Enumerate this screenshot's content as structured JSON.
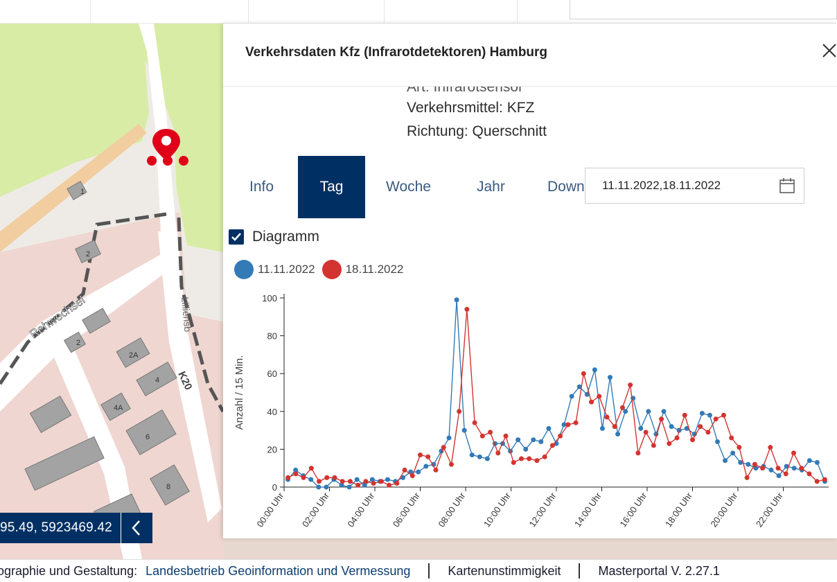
{
  "panel": {
    "title": "Verkehrsdaten Kfz (Infrarotdetektoren) Hamburg",
    "meta": {
      "art_cut": "Art: Infrarotsensor",
      "verkehrsmittel": "Verkehrsmittel: KFZ",
      "richtung": "Richtung: Querschnitt"
    },
    "tabs": [
      {
        "label": "Info",
        "active": false
      },
      {
        "label": "Tag",
        "active": true
      },
      {
        "label": "Woche",
        "active": false
      },
      {
        "label": "Jahr",
        "active": false
      },
      {
        "label": "Down",
        "active": false
      }
    ],
    "date_input": {
      "value": "11.11.2022,18.11.2022",
      "icon": "calendar-icon"
    },
    "diagram_checkbox": {
      "label": "Diagramm",
      "checked": true
    }
  },
  "map": {
    "street_labels": [
      "Rehwechsel",
      "K20",
      "Lilliensb"
    ],
    "house_numbers": [
      "1",
      "2",
      "2",
      "2A",
      "4",
      "4A",
      "6",
      "8"
    ],
    "marker_icon": "map-marker-icon"
  },
  "coordinates": {
    "value": "95.49, 5923469.42",
    "icon": "chevron-left-icon"
  },
  "footer": {
    "label": "ographie und Gestaltung:",
    "link": "Landesbetrieb Geoinformation und Vermessung",
    "map_issues": "Kartenunstimmigkeit",
    "version": "Masterportal V. 2.27.1"
  },
  "colors": {
    "series_1": "#337ab7",
    "series_2": "#d33430",
    "accent": "#003063"
  },
  "chart_data": {
    "type": "line",
    "ylabel": "Anzahl / 15 Min.",
    "ylim": [
      0,
      100
    ],
    "yticks": [
      "0",
      "20",
      "40",
      "60",
      "80",
      "100"
    ],
    "xticks": [
      "00:00 Uhr",
      "02:00 Uhr",
      "04:00 Uhr",
      "06:00 Uhr",
      "08:00 Uhr",
      "10:00 Uhr",
      "12:00 Uhr",
      "14:00 Uhr",
      "16:00 Uhr",
      "18:00 Uhr",
      "20:00 Uhr",
      "22:00 Uhr"
    ],
    "legend_position": "top-left",
    "grid": false,
    "series": [
      {
        "name": "11.11.2022",
        "color": "#337ab7",
        "values": [
          4,
          9,
          6,
          4,
          0,
          0,
          4,
          1,
          0,
          4,
          1,
          4,
          3,
          4,
          3,
          5,
          8,
          8,
          11,
          12,
          19,
          26,
          99,
          30,
          17,
          16,
          15,
          23,
          23,
          19,
          25,
          20,
          25,
          24,
          31,
          23,
          33,
          48,
          53,
          49,
          62,
          31,
          58,
          28,
          40,
          47,
          31,
          40,
          28,
          40,
          32,
          30,
          31,
          28,
          39,
          38,
          24,
          14,
          18,
          13,
          12,
          10,
          11,
          9,
          6,
          11,
          10,
          9,
          14,
          13,
          3
        ]
      },
      {
        "name": "18.11.2022",
        "color": "#d33430",
        "values": [
          5,
          7,
          5,
          10,
          3,
          5,
          5,
          3,
          3,
          1,
          3,
          2,
          3,
          1,
          2,
          9,
          6,
          17,
          16,
          9,
          21,
          12,
          40,
          94,
          34,
          27,
          29,
          18,
          27,
          13,
          15,
          15,
          14,
          16,
          22,
          27,
          33,
          34,
          60,
          45,
          48,
          37,
          32,
          42,
          54,
          18,
          29,
          22,
          36,
          23,
          26,
          38,
          25,
          32,
          29,
          36,
          38,
          26,
          21,
          5,
          12,
          10,
          21,
          10,
          7,
          18,
          10,
          7,
          3,
          4
        ]
      }
    ]
  }
}
